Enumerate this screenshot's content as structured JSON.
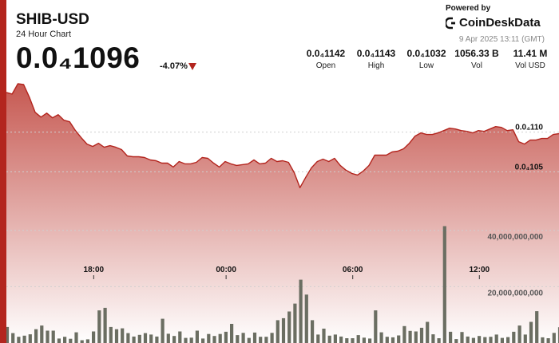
{
  "header": {
    "title": "SHIB-USD",
    "subtitle": "24 Hour Chart",
    "price": "0.0₄1096",
    "change": "-4.07%"
  },
  "brand": {
    "powered_by": "Powered by",
    "name": "CoinDeskData",
    "datetime": "9 Apr 2025 13:11 (GMT)"
  },
  "stats": [
    {
      "value": "0.0₄1142",
      "label": "Open"
    },
    {
      "value": "0.0₄1143",
      "label": "High"
    },
    {
      "value": "0.0₄1032",
      "label": "Low"
    },
    {
      "value": "1056.33 B",
      "label": "Vol"
    },
    {
      "value": "11.41 M",
      "label": "Vol USD"
    }
  ],
  "colors": {
    "accent": "#b3251e",
    "line": "#b3251e",
    "area_top": "#c0463e",
    "volume_bar": "#6b6e62"
  },
  "chart_data": {
    "type": "line",
    "title": "",
    "xlabel": "",
    "ylabel": "",
    "x_ticks": [
      "18:00",
      "00:00",
      "06:00",
      "12:00"
    ],
    "price_axis": {
      "ticks": [
        {
          "value": 1.1e-05,
          "label": "0.0₄110"
        },
        {
          "value": 1.05e-05,
          "label": "0.0₄105"
        }
      ],
      "ylim": [
        9.75e-06,
        1.166e-05
      ]
    },
    "volume_axis": {
      "ticks": [
        {
          "value": 40000000000,
          "label": "40,000,000,000"
        },
        {
          "value": 20000000000,
          "label": "20,000,000,000"
        }
      ],
      "ylim": [
        0,
        51000000000
      ]
    },
    "grid": true,
    "price_series": {
      "name": "Price",
      "values": [
        1.15e-05,
        1.148e-05,
        1.161e-05,
        1.16e-05,
        1.144e-05,
        1.125e-05,
        1.119e-05,
        1.124e-05,
        1.118e-05,
        1.122e-05,
        1.115e-05,
        1.113e-05,
        1.102e-05,
        1.093e-05,
        1.085e-05,
        1.082e-05,
        1.086e-05,
        1.081e-05,
        1.083e-05,
        1.081e-05,
        1.078e-05,
        1.07e-05,
        1.069e-05,
        1.069e-05,
        1.068e-05,
        1.065e-05,
        1.064e-05,
        1.061e-05,
        1.061e-05,
        1.056e-05,
        1.063e-05,
        1.06e-05,
        1.06e-05,
        1.062e-05,
        1.068e-05,
        1.067e-05,
        1.061e-05,
        1.056e-05,
        1.063e-05,
        1.06e-05,
        1.058e-05,
        1.059e-05,
        1.06e-05,
        1.065e-05,
        1.06e-05,
        1.061e-05,
        1.067e-05,
        1.063e-05,
        1.064e-05,
        1.062e-05,
        1.049e-05,
        1.03e-05,
        1.043e-05,
        1.055e-05,
        1.063e-05,
        1.066e-05,
        1.063e-05,
        1.067e-05,
        1.058e-05,
        1.052e-05,
        1.048e-05,
        1.046e-05,
        1.051e-05,
        1.058e-05,
        1.071e-05,
        1.071e-05,
        1.071e-05,
        1.075e-05,
        1.076e-05,
        1.079e-05,
        1.086e-05,
        1.095e-05,
        1.099e-05,
        1.097e-05,
        1.097e-05,
        1.099e-05,
        1.102e-05,
        1.105e-05,
        1.104e-05,
        1.102e-05,
        1.101e-05,
        1.099e-05,
        1.102e-05,
        1.101e-05,
        1.104e-05,
        1.107e-05,
        1.106e-05,
        1.102e-05,
        1.103e-05,
        1.088e-05,
        1.085e-05,
        1.09e-05,
        1.09e-05,
        1.092e-05,
        1.092e-05,
        1.097e-05,
        1.098e-05
      ]
    },
    "volume_series": {
      "name": "Volume",
      "values": [
        5700000000.0,
        3500000000.0,
        2200000000.0,
        2600000000.0,
        3100000000.0,
        4900000000.0,
        6200000000.0,
        4400000000.0,
        4400000000.0,
        1600000000.0,
        2200000000.0,
        1500000000.0,
        3800000000.0,
        1000000000.0,
        1300000000.0,
        4100000000.0,
        11600000000.0,
        12500000000.0,
        5700000000.0,
        4900000000.0,
        5200000000.0,
        3500000000.0,
        2300000000.0,
        2900000000.0,
        3500000000.0,
        3000000000.0,
        2300000000.0,
        8600000000.0,
        3300000000.0,
        2500000000.0,
        4100000000.0,
        1800000000.0,
        1900000000.0,
        4400000000.0,
        1600000000.0,
        3200000000.0,
        2500000000.0,
        3200000000.0,
        4000000000.0,
        6800000000.0,
        2800000000.0,
        3600000000.0,
        1800000000.0,
        3700000000.0,
        2200000000.0,
        2200000000.0,
        3600000000.0,
        8100000000.0,
        8800000000.0,
        11200000000.0,
        14000000000.0,
        22500000000.0,
        17200000000.0,
        8100000000.0,
        3000000000.0,
        5100000000.0,
        2600000000.0,
        3000000000.0,
        2300000000.0,
        1700000000.0,
        1700000000.0,
        2800000000.0,
        1900000000.0,
        1600000000.0,
        11600000000.0,
        3800000000.0,
        2200000000.0,
        2000000000.0,
        2700000000.0,
        6000000000.0,
        4300000000.0,
        4100000000.0,
        5400000000.0,
        7500000000.0,
        3100000000.0,
        1700000000.0,
        41500000000.0,
        4000000000.0,
        1400000000.0,
        3900000000.0,
        2300000000.0,
        1800000000.0,
        2500000000.0,
        2100000000.0,
        2200000000.0,
        3000000000.0,
        1800000000.0,
        2100000000.0,
        4000000000.0,
        6200000000.0,
        3000000000.0,
        7500000000.0,
        11300000000.0,
        2000000000.0,
        1700000000.0,
        3600000000.0,
        5600000000.0
      ]
    }
  }
}
